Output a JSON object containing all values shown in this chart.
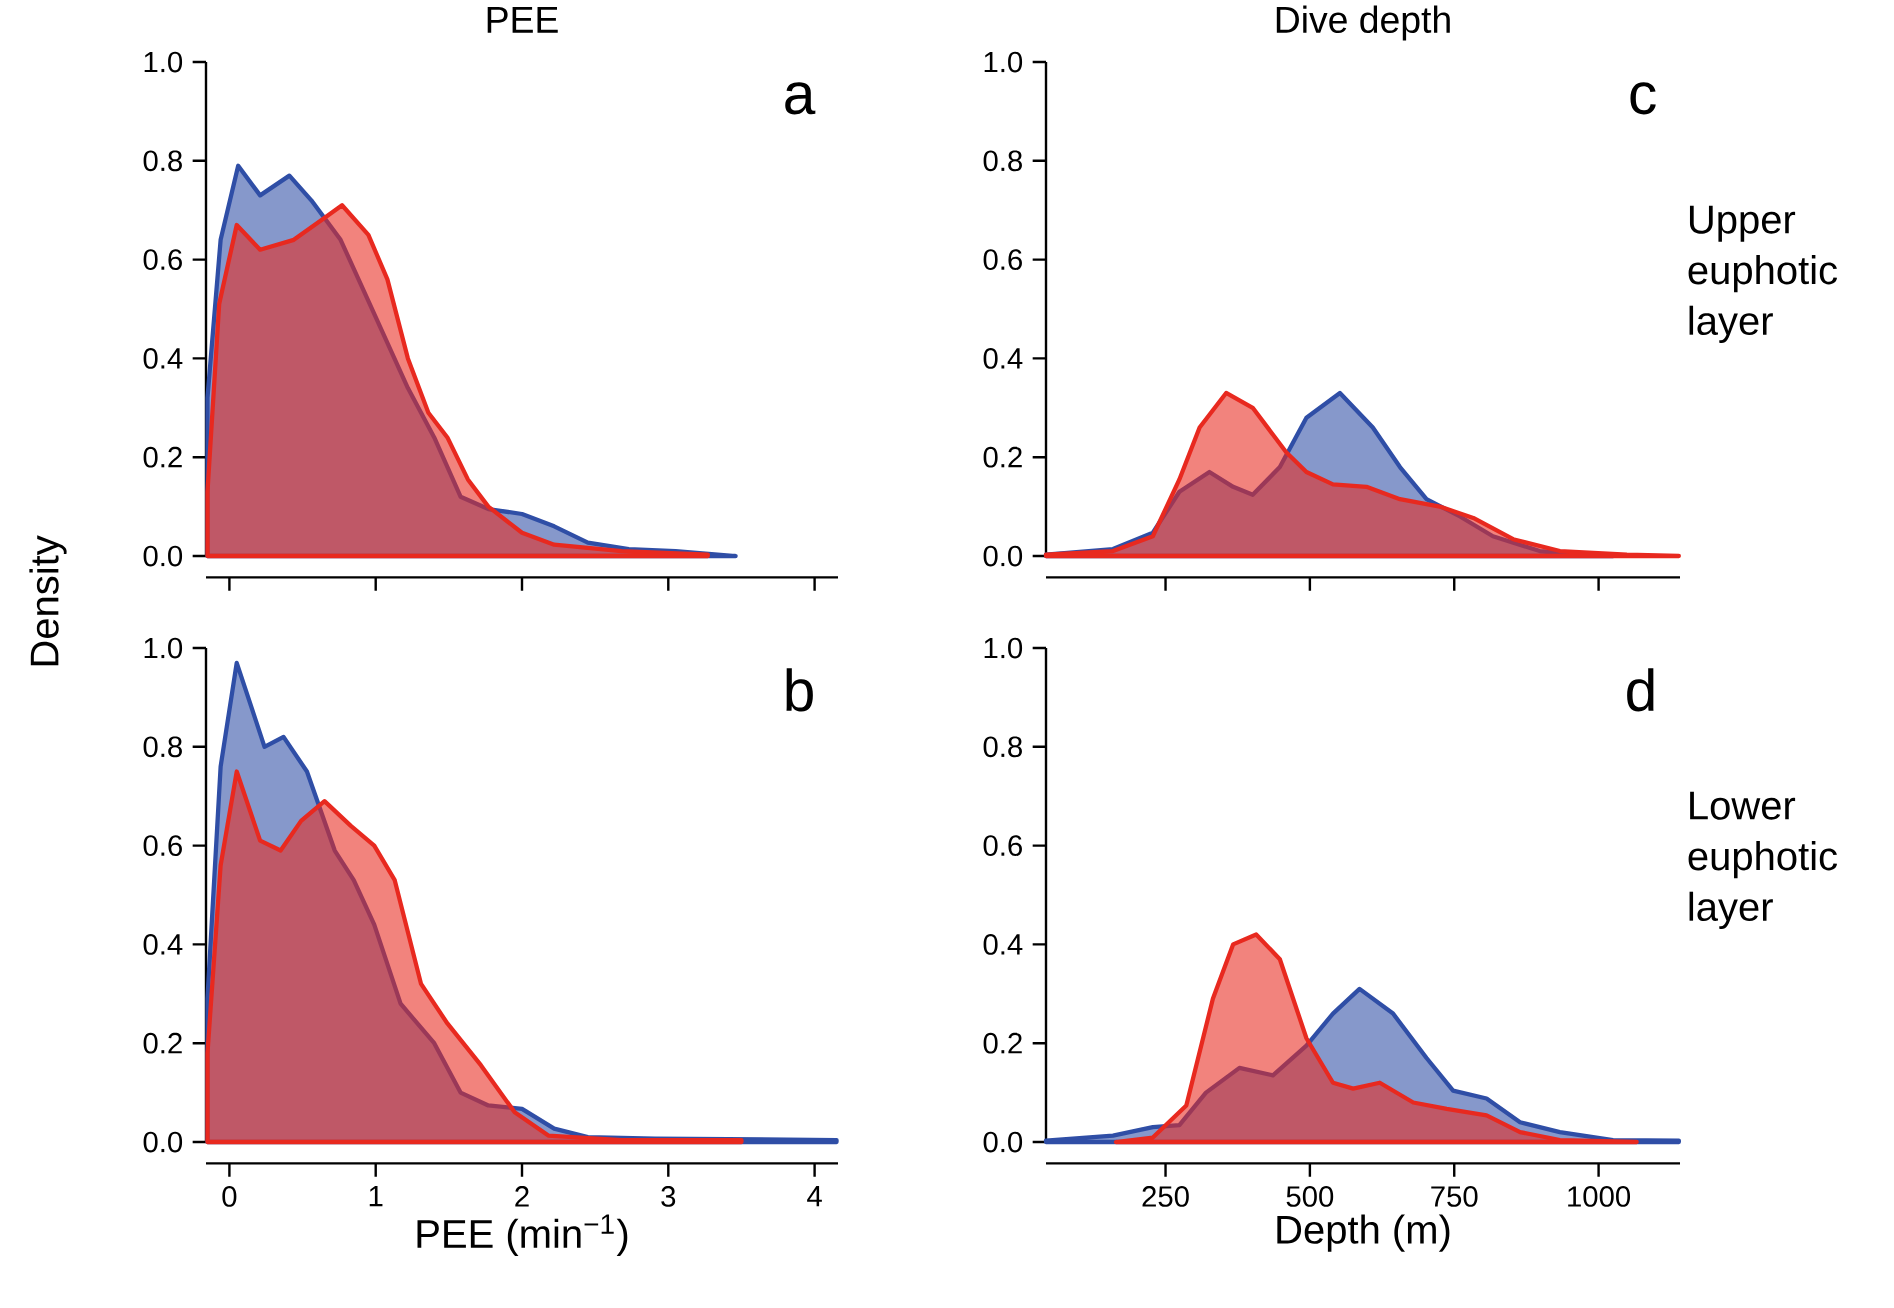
{
  "chart_data": [
    {
      "type": "area",
      "title": "PEE",
      "ylabel": "Density",
      "xlim": [
        -0.16,
        4.16
      ],
      "ylim": [
        0,
        1
      ],
      "xticks": [
        0,
        1,
        2,
        3,
        4
      ],
      "yticks": [
        {
          "value": 0,
          "label": "0.0"
        },
        {
          "value": 0.2,
          "label": "0.2"
        },
        {
          "value": 0.4,
          "label": "0.4"
        },
        {
          "value": 0.6,
          "label": "0.6"
        },
        {
          "value": 0.8,
          "label": "0.8"
        },
        {
          "value": 1,
          "label": "1.0"
        }
      ],
      "tick_labels": "y",
      "annotations": [
        "a"
      ],
      "series": [
        {
          "color": "#2f4ea6",
          "x": [
            -0.15,
            -0.06,
            0.06,
            0.21,
            0.41,
            0.56,
            0.76,
            0.99,
            1.22,
            1.4,
            1.58,
            1.77,
            2.0,
            2.22,
            2.45,
            2.73,
            3.05,
            3.46
          ],
          "values": [
            0.32,
            0.64,
            0.79,
            0.73,
            0.77,
            0.72,
            0.64,
            0.49,
            0.34,
            0.24,
            0.12,
            0.095,
            0.085,
            0.06,
            0.027,
            0.014,
            0.01,
            0
          ]
        },
        {
          "color": "#e8291f",
          "x": [
            -0.15,
            -0.07,
            0.05,
            0.21,
            0.44,
            0.63,
            0.77,
            0.95,
            1.08,
            1.22,
            1.36,
            1.49,
            1.63,
            1.77,
            2.0,
            2.22,
            2.68,
            3.27
          ],
          "values": [
            0.13,
            0.51,
            0.67,
            0.62,
            0.64,
            0.68,
            0.71,
            0.65,
            0.56,
            0.4,
            0.29,
            0.24,
            0.155,
            0.1,
            0.047,
            0.023,
            0.01,
            0.003
          ]
        }
      ]
    },
    {
      "type": "area",
      "xlabel": "PEE (min$^{−1}$)",
      "xlim": [
        -0.16,
        4.16
      ],
      "ylim": [
        0,
        1
      ],
      "xticks": [
        0,
        1,
        2,
        3,
        4
      ],
      "yticks": [
        {
          "value": 0,
          "label": "0.0"
        },
        {
          "value": 0.2,
          "label": "0.2"
        },
        {
          "value": 0.4,
          "label": "0.4"
        },
        {
          "value": 0.6,
          "label": "0.6"
        },
        {
          "value": 0.8,
          "label": "0.8"
        },
        {
          "value": 1,
          "label": "1.0"
        }
      ],
      "annotations": [
        "b"
      ],
      "series": [
        {
          "color": "#2f4ea6",
          "x": [
            -0.15,
            -0.06,
            0.05,
            0.24,
            0.37,
            0.53,
            0.72,
            0.85,
            0.99,
            1.17,
            1.4,
            1.58,
            1.77,
            2.0,
            2.22,
            2.45,
            2.91,
            4.15
          ],
          "values": [
            0.29,
            0.76,
            0.97,
            0.8,
            0.82,
            0.75,
            0.59,
            0.53,
            0.44,
            0.28,
            0.2,
            0.1,
            0.074,
            0.067,
            0.027,
            0.01,
            0.007,
            0.004
          ]
        },
        {
          "color": "#e8291f",
          "x": [
            -0.15,
            -0.06,
            0.05,
            0.21,
            0.35,
            0.49,
            0.65,
            0.83,
            0.99,
            1.13,
            1.31,
            1.49,
            1.72,
            1.95,
            2.18,
            2.68,
            3.5
          ],
          "values": [
            0.18,
            0.56,
            0.75,
            0.61,
            0.59,
            0.65,
            0.69,
            0.64,
            0.6,
            0.53,
            0.32,
            0.24,
            0.155,
            0.06,
            0.013,
            0.004,
            0.004
          ]
        }
      ]
    },
    {
      "type": "area",
      "title": "Dive depth",
      "xlim": [
        43,
        1141
      ],
      "ylim": [
        0,
        1
      ],
      "xticks": [
        250,
        500,
        750,
        1000
      ],
      "yticks": [
        {
          "value": 0,
          "label": "0.0"
        },
        {
          "value": 0.2,
          "label": "0.2"
        },
        {
          "value": 0.4,
          "label": "0.4"
        },
        {
          "value": 0.6,
          "label": "0.6"
        },
        {
          "value": 0.8,
          "label": "0.8"
        },
        {
          "value": 1,
          "label": "1.0"
        }
      ],
      "tick_labels": "y",
      "annotations": [
        "c",
        "Upper euphotic layer"
      ],
      "series": [
        {
          "color": "#2f4ea6",
          "x": [
            43,
            159,
            228,
            274,
            326,
            367,
            401,
            448,
            494,
            552,
            609,
            656,
            702,
            760,
            817,
            898,
            1025
          ],
          "values": [
            0.003,
            0.014,
            0.047,
            0.13,
            0.17,
            0.14,
            0.124,
            0.18,
            0.28,
            0.33,
            0.26,
            0.18,
            0.115,
            0.08,
            0.04,
            0.01,
            0
          ]
        },
        {
          "color": "#e8291f",
          "x": [
            43,
            159,
            228,
            274,
            309,
            355,
            401,
            459,
            494,
            540,
            598,
            656,
            725,
            783,
            852,
            933,
            1049,
            1139
          ],
          "values": [
            0.003,
            0.01,
            0.04,
            0.155,
            0.26,
            0.33,
            0.3,
            0.21,
            0.17,
            0.145,
            0.14,
            0.115,
            0.1,
            0.077,
            0.034,
            0.01,
            0.003,
            0
          ]
        }
      ]
    },
    {
      "type": "area",
      "xlabel": "Depth (m)",
      "xlim": [
        43,
        1141
      ],
      "ylim": [
        0,
        1
      ],
      "xticks": [
        250,
        500,
        750,
        1000
      ],
      "yticks": [
        {
          "value": 0,
          "label": "0.0"
        },
        {
          "value": 0.2,
          "label": "0.2"
        },
        {
          "value": 0.4,
          "label": "0.4"
        },
        {
          "value": 0.6,
          "label": "0.6"
        },
        {
          "value": 0.8,
          "label": "0.8"
        },
        {
          "value": 1,
          "label": "1.0"
        }
      ],
      "annotations": [
        "d",
        "Lower euphotic layer"
      ],
      "series": [
        {
          "color": "#2f4ea6",
          "x": [
            43,
            159,
            228,
            274,
            320,
            378,
            436,
            494,
            540,
            586,
            644,
            702,
            748,
            806,
            864,
            933,
            1025,
            1139
          ],
          "values": [
            0.003,
            0.013,
            0.03,
            0.034,
            0.1,
            0.15,
            0.135,
            0.195,
            0.26,
            0.31,
            0.26,
            0.17,
            0.104,
            0.088,
            0.04,
            0.02,
            0.004,
            0.003
          ]
        },
        {
          "color": "#e8291f",
          "x": [
            164,
            228,
            286,
            332,
            367,
            407,
            448,
            494,
            540,
            575,
            621,
            679,
            737,
            806,
            864,
            933,
            1066
          ],
          "values": [
            0,
            0.009,
            0.074,
            0.29,
            0.4,
            0.42,
            0.37,
            0.21,
            0.12,
            0.108,
            0.12,
            0.08,
            0.067,
            0.054,
            0.02,
            0.004,
            0
          ]
        }
      ]
    }
  ]
}
